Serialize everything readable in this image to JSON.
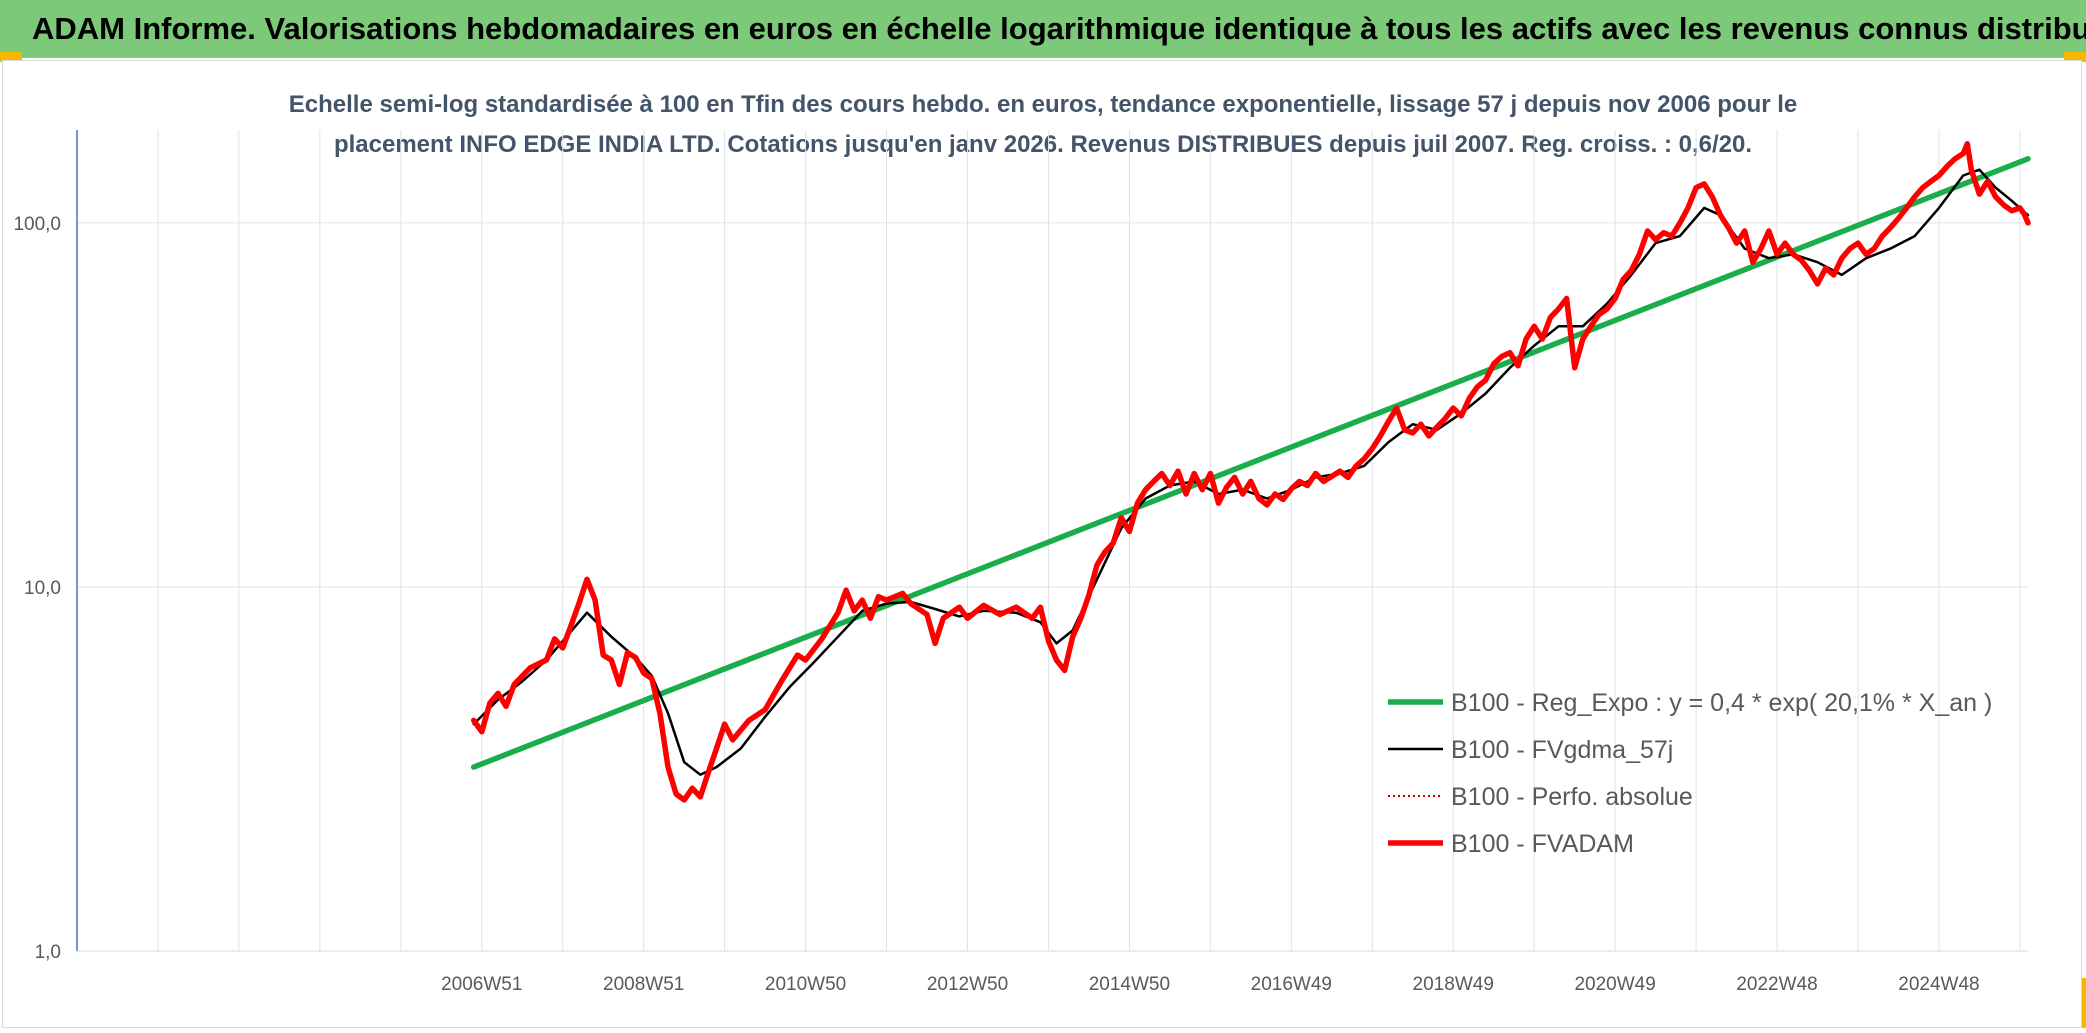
{
  "header": {
    "title": "ADAM Informe. Valorisations hebdomadaires en euros en échelle logarithmique identique à tous les actifs avec les revenus connus distribués"
  },
  "chart_data": {
    "type": "line",
    "title": "",
    "subtitle_lines": [
      "Echelle semi-log standardisée à 100 en Tfin des cours hebdo. en euros, tendance exponentielle, lissage 57 j depuis nov 2006 pour le",
      "placement INFO EDGE INDIA LTD. Cotations jusqu'en janv 2026. Revenus DISTRIBUES depuis juil 2007. Reg. croiss. : 0,6/20."
    ],
    "y_scale": "log",
    "ylim": [
      1,
      180
    ],
    "y_ticks": [
      {
        "value": 1,
        "label": "1,0"
      },
      {
        "value": 10,
        "label": "10,0"
      },
      {
        "value": 100,
        "label": "100,0"
      }
    ],
    "xlim": [
      2002.0,
      2026.1
    ],
    "x_ticks": [
      {
        "value": 2007.0,
        "label": "2006W51"
      },
      {
        "value": 2009.0,
        "label": "2008W51"
      },
      {
        "value": 2011.0,
        "label": "2010W50"
      },
      {
        "value": 2013.0,
        "label": "2012W50"
      },
      {
        "value": 2015.0,
        "label": "2014W50"
      },
      {
        "value": 2017.0,
        "label": "2016W49"
      },
      {
        "value": 2019.0,
        "label": "2018W49"
      },
      {
        "value": 2021.0,
        "label": "2020W49"
      },
      {
        "value": 2023.0,
        "label": "2022W48"
      },
      {
        "value": 2025.0,
        "label": "2024W48"
      }
    ],
    "grid": "vertical and horizontal",
    "legend_position": "bottom-right",
    "series": [
      {
        "name": "B100 - Reg_Expo : y = 0,4 * exp( 20,1% *  X_an )",
        "color": "#1aad4b",
        "style": "solid-thick",
        "points": [
          [
            2006.9,
            3.2
          ],
          [
            2026.1,
            150
          ]
        ]
      },
      {
        "name": "B100 - FVgdma_57j",
        "color": "#000000",
        "style": "solid",
        "points": [
          [
            2006.9,
            4.2
          ],
          [
            2007.2,
            4.9
          ],
          [
            2007.5,
            5.5
          ],
          [
            2007.8,
            6.3
          ],
          [
            2008.0,
            7.1
          ],
          [
            2008.3,
            8.5
          ],
          [
            2008.6,
            7.3
          ],
          [
            2008.9,
            6.4
          ],
          [
            2009.1,
            5.7
          ],
          [
            2009.3,
            4.5
          ],
          [
            2009.5,
            3.3
          ],
          [
            2009.7,
            3.05
          ],
          [
            2009.9,
            3.2
          ],
          [
            2010.2,
            3.6
          ],
          [
            2010.5,
            4.4
          ],
          [
            2010.8,
            5.3
          ],
          [
            2011.1,
            6.2
          ],
          [
            2011.4,
            7.3
          ],
          [
            2011.7,
            8.6
          ],
          [
            2012.0,
            9.0
          ],
          [
            2012.3,
            9.1
          ],
          [
            2012.6,
            8.7
          ],
          [
            2012.9,
            8.3
          ],
          [
            2013.2,
            8.6
          ],
          [
            2013.6,
            8.5
          ],
          [
            2013.9,
            8.0
          ],
          [
            2014.1,
            7.0
          ],
          [
            2014.3,
            7.6
          ],
          [
            2014.6,
            10.5
          ],
          [
            2014.9,
            14.5
          ],
          [
            2015.2,
            17.5
          ],
          [
            2015.5,
            19.0
          ],
          [
            2015.8,
            19.5
          ],
          [
            2016.1,
            18.0
          ],
          [
            2016.4,
            18.5
          ],
          [
            2016.7,
            17.5
          ],
          [
            2017.0,
            18.5
          ],
          [
            2017.3,
            20.0
          ],
          [
            2017.6,
            20.5
          ],
          [
            2017.9,
            21.5
          ],
          [
            2018.2,
            25.0
          ],
          [
            2018.5,
            28.0
          ],
          [
            2018.8,
            27.0
          ],
          [
            2019.1,
            30.0
          ],
          [
            2019.4,
            34.0
          ],
          [
            2019.7,
            40.0
          ],
          [
            2020.0,
            46.0
          ],
          [
            2020.3,
            52.0
          ],
          [
            2020.6,
            52.0
          ],
          [
            2020.9,
            60.0
          ],
          [
            2021.2,
            72.0
          ],
          [
            2021.5,
            88.0
          ],
          [
            2021.8,
            92.0
          ],
          [
            2022.1,
            110.0
          ],
          [
            2022.3,
            105.0
          ],
          [
            2022.6,
            85.0
          ],
          [
            2022.9,
            80.0
          ],
          [
            2023.2,
            82.0
          ],
          [
            2023.5,
            78.0
          ],
          [
            2023.8,
            72.0
          ],
          [
            2024.1,
            80.0
          ],
          [
            2024.4,
            85.0
          ],
          [
            2024.7,
            92.0
          ],
          [
            2025.0,
            110.0
          ],
          [
            2025.3,
            135.0
          ],
          [
            2025.5,
            140.0
          ],
          [
            2025.7,
            125.0
          ],
          [
            2025.9,
            115.0
          ],
          [
            2026.1,
            105.0
          ]
        ]
      },
      {
        "name": "B100 - Perfo. absolue",
        "color": "#c00000",
        "style": "dotted",
        "points": []
      },
      {
        "name": "B100 - FVADAM",
        "color": "#ff0000",
        "style": "solid-thick",
        "points": [
          [
            2006.9,
            4.3
          ],
          [
            2007.0,
            4.0
          ],
          [
            2007.1,
            4.8
          ],
          [
            2007.2,
            5.1
          ],
          [
            2007.3,
            4.7
          ],
          [
            2007.4,
            5.4
          ],
          [
            2007.6,
            6.0
          ],
          [
            2007.8,
            6.3
          ],
          [
            2007.9,
            7.2
          ],
          [
            2008.0,
            6.8
          ],
          [
            2008.1,
            7.8
          ],
          [
            2008.2,
            9.0
          ],
          [
            2008.3,
            10.5
          ],
          [
            2008.4,
            9.2
          ],
          [
            2008.5,
            6.5
          ],
          [
            2008.6,
            6.3
          ],
          [
            2008.7,
            5.4
          ],
          [
            2008.8,
            6.6
          ],
          [
            2008.9,
            6.4
          ],
          [
            2009.0,
            5.8
          ],
          [
            2009.1,
            5.6
          ],
          [
            2009.2,
            4.5
          ],
          [
            2009.3,
            3.2
          ],
          [
            2009.4,
            2.7
          ],
          [
            2009.5,
            2.6
          ],
          [
            2009.6,
            2.8
          ],
          [
            2009.7,
            2.65
          ],
          [
            2009.8,
            3.1
          ],
          [
            2009.9,
            3.6
          ],
          [
            2010.0,
            4.2
          ],
          [
            2010.1,
            3.8
          ],
          [
            2010.3,
            4.3
          ],
          [
            2010.5,
            4.6
          ],
          [
            2010.7,
            5.5
          ],
          [
            2010.9,
            6.5
          ],
          [
            2011.0,
            6.3
          ],
          [
            2011.2,
            7.2
          ],
          [
            2011.4,
            8.5
          ],
          [
            2011.5,
            9.8
          ],
          [
            2011.6,
            8.6
          ],
          [
            2011.7,
            9.2
          ],
          [
            2011.8,
            8.2
          ],
          [
            2011.9,
            9.4
          ],
          [
            2012.0,
            9.2
          ],
          [
            2012.2,
            9.6
          ],
          [
            2012.3,
            9.0
          ],
          [
            2012.5,
            8.4
          ],
          [
            2012.6,
            7.0
          ],
          [
            2012.7,
            8.2
          ],
          [
            2012.9,
            8.8
          ],
          [
            2013.0,
            8.2
          ],
          [
            2013.2,
            8.9
          ],
          [
            2013.4,
            8.4
          ],
          [
            2013.6,
            8.8
          ],
          [
            2013.8,
            8.2
          ],
          [
            2013.9,
            8.8
          ],
          [
            2014.0,
            7.1
          ],
          [
            2014.1,
            6.3
          ],
          [
            2014.2,
            5.9
          ],
          [
            2014.3,
            7.3
          ],
          [
            2014.4,
            8.2
          ],
          [
            2014.5,
            9.5
          ],
          [
            2014.6,
            11.5
          ],
          [
            2014.7,
            12.5
          ],
          [
            2014.8,
            13.2
          ],
          [
            2014.9,
            15.5
          ],
          [
            2015.0,
            14.2
          ],
          [
            2015.1,
            17.0
          ],
          [
            2015.2,
            18.5
          ],
          [
            2015.3,
            19.5
          ],
          [
            2015.4,
            20.5
          ],
          [
            2015.5,
            19.0
          ],
          [
            2015.6,
            20.8
          ],
          [
            2015.7,
            18.0
          ],
          [
            2015.8,
            20.5
          ],
          [
            2015.9,
            18.5
          ],
          [
            2016.0,
            20.5
          ],
          [
            2016.1,
            17.0
          ],
          [
            2016.2,
            18.8
          ],
          [
            2016.3,
            20.0
          ],
          [
            2016.4,
            18.0
          ],
          [
            2016.5,
            19.5
          ],
          [
            2016.6,
            17.5
          ],
          [
            2016.7,
            16.8
          ],
          [
            2016.8,
            18.0
          ],
          [
            2016.9,
            17.4
          ],
          [
            2017.0,
            18.6
          ],
          [
            2017.1,
            19.5
          ],
          [
            2017.2,
            19.0
          ],
          [
            2017.3,
            20.5
          ],
          [
            2017.4,
            19.5
          ],
          [
            2017.6,
            20.8
          ],
          [
            2017.7,
            20.0
          ],
          [
            2017.8,
            21.5
          ],
          [
            2017.9,
            22.5
          ],
          [
            2018.0,
            24.0
          ],
          [
            2018.1,
            26.0
          ],
          [
            2018.2,
            28.5
          ],
          [
            2018.3,
            31.0
          ],
          [
            2018.4,
            27.0
          ],
          [
            2018.5,
            26.5
          ],
          [
            2018.6,
            28.0
          ],
          [
            2018.7,
            26.0
          ],
          [
            2018.8,
            27.5
          ],
          [
            2018.9,
            29.0
          ],
          [
            2019.0,
            31.0
          ],
          [
            2019.1,
            29.5
          ],
          [
            2019.2,
            33.0
          ],
          [
            2019.3,
            35.5
          ],
          [
            2019.4,
            37.0
          ],
          [
            2019.5,
            41.0
          ],
          [
            2019.6,
            43.0
          ],
          [
            2019.7,
            44.0
          ],
          [
            2019.8,
            40.5
          ],
          [
            2019.9,
            48.0
          ],
          [
            2020.0,
            52.0
          ],
          [
            2020.1,
            48.0
          ],
          [
            2020.2,
            55.0
          ],
          [
            2020.3,
            58.0
          ],
          [
            2020.4,
            62.0
          ],
          [
            2020.5,
            40.0
          ],
          [
            2020.6,
            48.0
          ],
          [
            2020.7,
            52.0
          ],
          [
            2020.8,
            56.0
          ],
          [
            2020.9,
            58.0
          ],
          [
            2021.0,
            62.0
          ],
          [
            2021.1,
            70.0
          ],
          [
            2021.2,
            74.0
          ],
          [
            2021.3,
            82.0
          ],
          [
            2021.4,
            95.0
          ],
          [
            2021.5,
            90.0
          ],
          [
            2021.6,
            94.0
          ],
          [
            2021.7,
            92.0
          ],
          [
            2021.8,
            100.0
          ],
          [
            2021.9,
            110.0
          ],
          [
            2022.0,
            125.0
          ],
          [
            2022.1,
            128.0
          ],
          [
            2022.2,
            118.0
          ],
          [
            2022.3,
            105.0
          ],
          [
            2022.4,
            97.0
          ],
          [
            2022.5,
            88.0
          ],
          [
            2022.6,
            95.0
          ],
          [
            2022.7,
            78.0
          ],
          [
            2022.8,
            85.0
          ],
          [
            2022.9,
            95.0
          ],
          [
            2023.0,
            82.0
          ],
          [
            2023.1,
            88.0
          ],
          [
            2023.2,
            82.0
          ],
          [
            2023.3,
            79.0
          ],
          [
            2023.4,
            74.0
          ],
          [
            2023.5,
            68.0
          ],
          [
            2023.6,
            75.0
          ],
          [
            2023.7,
            72.0
          ],
          [
            2023.8,
            80.0
          ],
          [
            2023.9,
            85.0
          ],
          [
            2024.0,
            88.0
          ],
          [
            2024.1,
            82.0
          ],
          [
            2024.2,
            85.0
          ],
          [
            2024.3,
            92.0
          ],
          [
            2024.4,
            97.0
          ],
          [
            2024.5,
            103.0
          ],
          [
            2024.6,
            110.0
          ],
          [
            2024.7,
            118.0
          ],
          [
            2024.8,
            125.0
          ],
          [
            2024.9,
            130.0
          ],
          [
            2025.0,
            135.0
          ],
          [
            2025.1,
            143.0
          ],
          [
            2025.2,
            150.0
          ],
          [
            2025.3,
            155.0
          ],
          [
            2025.35,
            165.0
          ],
          [
            2025.4,
            140.0
          ],
          [
            2025.5,
            120.0
          ],
          [
            2025.6,
            130.0
          ],
          [
            2025.7,
            118.0
          ],
          [
            2025.8,
            112.0
          ],
          [
            2025.9,
            108.0
          ],
          [
            2026.0,
            110.0
          ],
          [
            2026.05,
            106.0
          ],
          [
            2026.1,
            100.0
          ]
        ]
      }
    ]
  }
}
